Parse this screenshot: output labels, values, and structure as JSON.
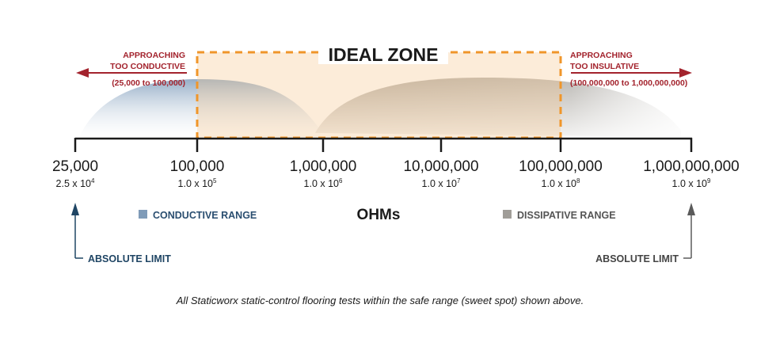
{
  "ideal_zone": {
    "label": "IDEAL ZONE",
    "color": "#f0962a",
    "fill": "#fbe9d4"
  },
  "left_warning": {
    "line1": "APPROACHING",
    "line2": "TOO CONDUCTIVE",
    "range": "(25,000 to 100,000)"
  },
  "right_warning": {
    "line1": "APPROACHING",
    "line2": "TOO INSULATIVE",
    "range": "(100,000,000 to 1,000,000,000)"
  },
  "warning_color": "#a3232d",
  "ticks": [
    {
      "value": "25,000",
      "mantissa": "2.5 x 10",
      "exp": "4"
    },
    {
      "value": "100,000",
      "mantissa": "1.0 x 10",
      "exp": "5"
    },
    {
      "value": "1,000,000",
      "mantissa": "1.0 x 10",
      "exp": "6"
    },
    {
      "value": "10,000,000",
      "mantissa": "1.0 x 10",
      "exp": "7"
    },
    {
      "value": "100,000,000",
      "mantissa": "1.0 x 10",
      "exp": "8"
    },
    {
      "value": "1,000,000,000",
      "mantissa": "1.0 x 10",
      "exp": "9"
    }
  ],
  "unit": "OHMs",
  "legend": {
    "conductive": {
      "label": "CONDUCTIVE RANGE",
      "color": "#7f9bb8"
    },
    "dissipative": {
      "label": "DISSIPATIVE RANGE",
      "color": "#a09d98"
    }
  },
  "limits": {
    "left": "ABSOLUTE LIMIT",
    "right": "ABSOLUTE LIMIT",
    "left_color": "#1f4564",
    "right_color": "#5a5a5a"
  },
  "caption": "All Staticworx static-control flooring tests within the safe range (sweet spot) shown above."
}
